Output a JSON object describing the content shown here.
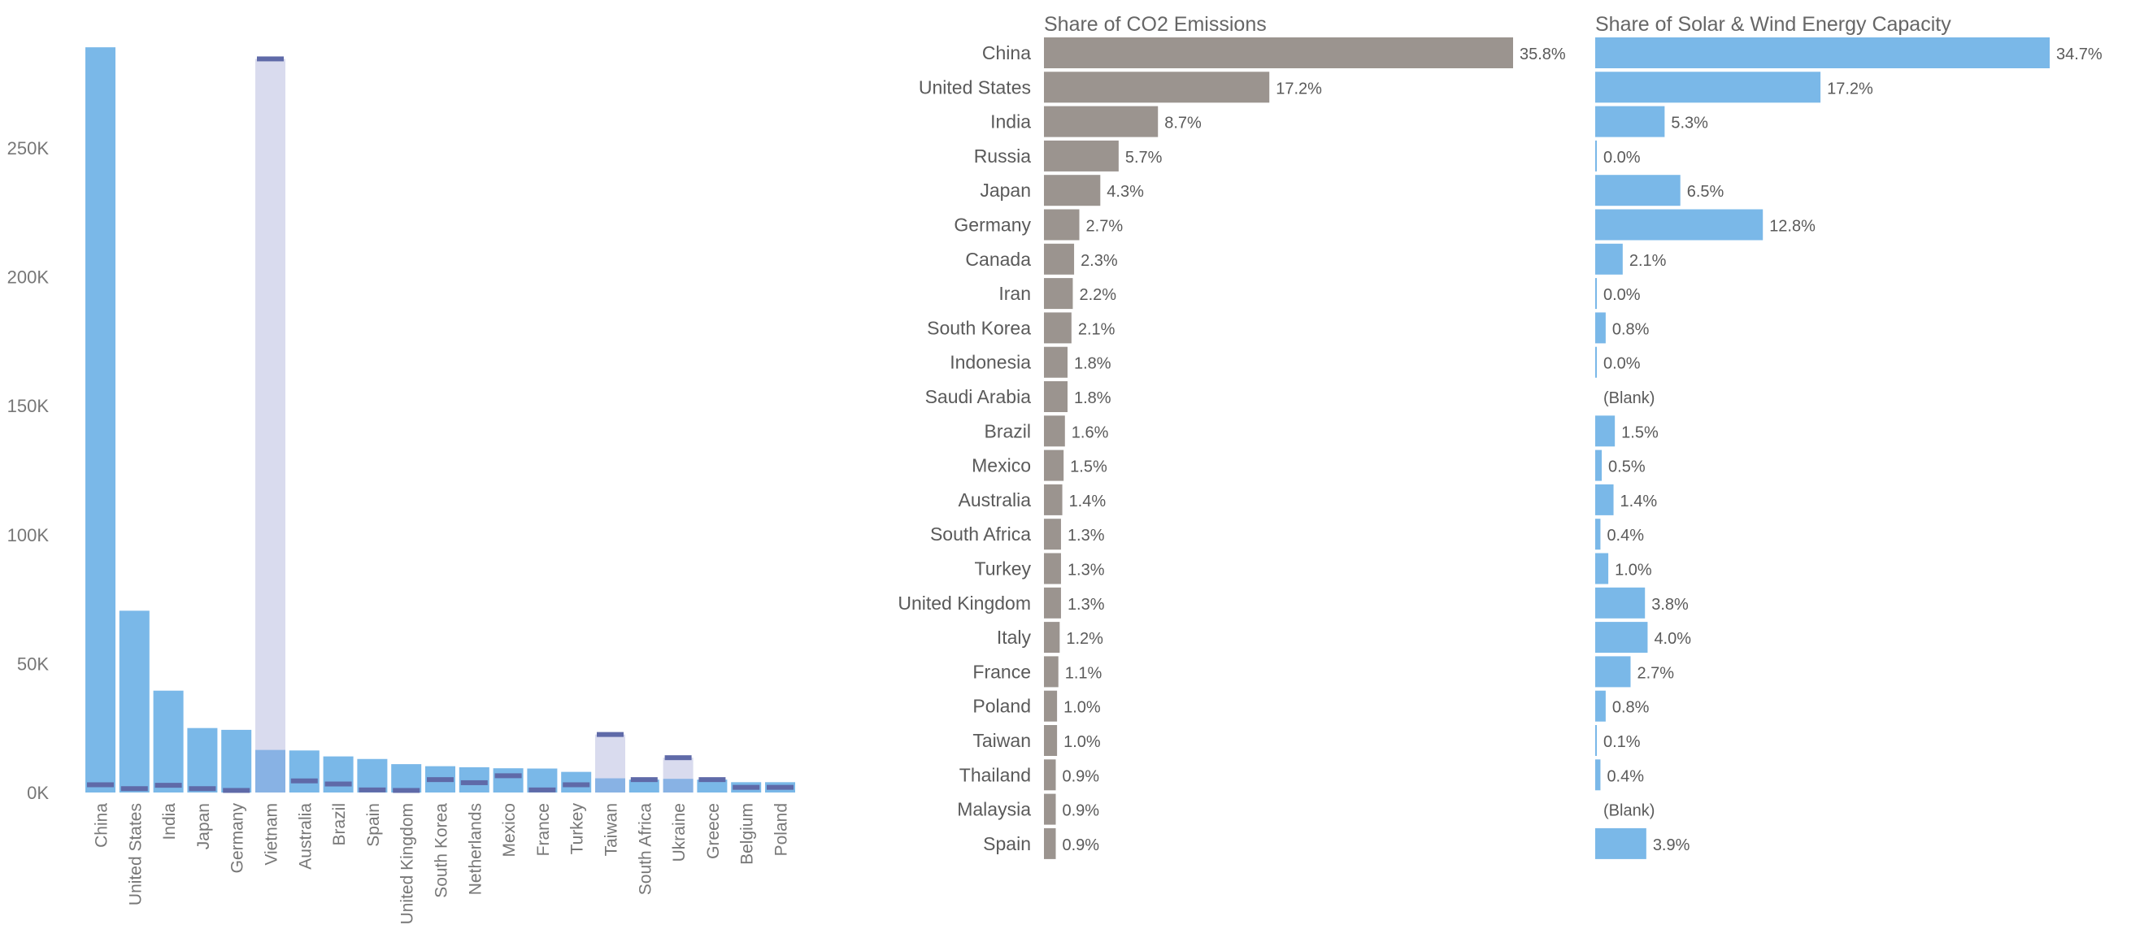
{
  "chart_data": [
    {
      "type": "bar",
      "title": "",
      "xlabel": "",
      "ylabel": "",
      "ylim": [
        0,
        290000
      ],
      "yticks": [
        0,
        50000,
        100000,
        150000,
        200000,
        250000
      ],
      "ytick_labels": [
        "0K",
        "50K",
        "100K",
        "150K",
        "200K",
        "250K"
      ],
      "categories": [
        "China",
        "United States",
        "India",
        "Japan",
        "Germany",
        "Vietnam",
        "Australia",
        "Brazil",
        "Spain",
        "United Kingdom",
        "South Korea",
        "Netherlands",
        "Mexico",
        "France",
        "Turkey",
        "Taiwan",
        "South Africa",
        "Ukraine",
        "Greece",
        "Belgium",
        "Poland"
      ],
      "highlighted": [
        "Vietnam",
        "Taiwan",
        "Ukraine"
      ],
      "series": [
        {
          "values": [
            289000,
            70500,
            39500,
            25000,
            24300,
            16500,
            16300,
            14000,
            13000,
            11000,
            10200,
            9800,
            9400,
            9300,
            8000,
            5500,
            5000,
            5300,
            5000,
            4000,
            4000
          ]
        },
        {
          "values": [
            null,
            null,
            null,
            null,
            null,
            284500,
            null,
            null,
            null,
            null,
            null,
            null,
            null,
            null,
            null,
            22500,
            null,
            13500,
            null,
            null,
            null
          ]
        },
        {
          "values": [
            3000,
            1500,
            2800,
            1500,
            800,
            284500,
            4500,
            3300,
            1000,
            800,
            5000,
            3800,
            6500,
            1000,
            3000,
            22500,
            5000,
            13500,
            5000,
            2000,
            2000
          ]
        }
      ],
      "grid": false,
      "legend": "none"
    },
    {
      "type": "bar",
      "orientation": "horizontal",
      "title": "Share of CO2 Emissions",
      "categories": [
        "China",
        "United States",
        "India",
        "Russia",
        "Japan",
        "Germany",
        "Canada",
        "Iran",
        "South Korea",
        "Indonesia",
        "Saudi Arabia",
        "Brazil",
        "Mexico",
        "Australia",
        "South Africa",
        "Turkey",
        "United Kingdom",
        "Italy",
        "France",
        "Poland",
        "Taiwan",
        "Thailand",
        "Malaysia",
        "Spain"
      ],
      "values": [
        35.8,
        17.2,
        8.7,
        5.7,
        4.3,
        2.7,
        2.3,
        2.2,
        2.1,
        1.8,
        1.8,
        1.6,
        1.5,
        1.4,
        1.3,
        1.3,
        1.3,
        1.2,
        1.1,
        1.0,
        1.0,
        0.9,
        0.9,
        0.9
      ],
      "labels": [
        "35.8%",
        "17.2%",
        "8.7%",
        "5.7%",
        "4.3%",
        "2.7%",
        "2.3%",
        "2.2%",
        "2.1%",
        "1.8%",
        "1.8%",
        "1.6%",
        "1.5%",
        "1.4%",
        "1.3%",
        "1.3%",
        "1.3%",
        "1.2%",
        "1.1%",
        "1.0%",
        "1.0%",
        "0.9%",
        "0.9%",
        "0.9%"
      ],
      "unit": "%",
      "grid": false,
      "legend": "none"
    },
    {
      "type": "bar",
      "orientation": "horizontal",
      "title": "Share of Solar & Wind Energy Capacity",
      "categories": [
        "China",
        "United States",
        "India",
        "Russia",
        "Japan",
        "Germany",
        "Canada",
        "Iran",
        "South Korea",
        "Indonesia",
        "Saudi Arabia",
        "Brazil",
        "Mexico",
        "Australia",
        "South Africa",
        "Turkey",
        "United Kingdom",
        "Italy",
        "France",
        "Poland",
        "Taiwan",
        "Thailand",
        "Malaysia",
        "Spain"
      ],
      "values": [
        34.7,
        17.2,
        5.3,
        0.0,
        6.5,
        12.8,
        2.1,
        0.0,
        0.8,
        0.0,
        null,
        1.5,
        0.5,
        1.4,
        0.4,
        1.0,
        3.8,
        4.0,
        2.7,
        0.8,
        0.1,
        0.4,
        null,
        3.9
      ],
      "labels": [
        "34.7%",
        "17.2%",
        "5.3%",
        "0.0%",
        "6.5%",
        "12.8%",
        "2.1%",
        "0.0%",
        "0.8%",
        "0.0%",
        "(Blank)",
        "1.5%",
        "0.5%",
        "1.4%",
        "0.4%",
        "1.0%",
        "3.8%",
        "4.0%",
        "2.7%",
        "0.8%",
        "0.1%",
        "0.4%",
        "(Blank)",
        "3.9%"
      ],
      "unit": "%",
      "grid": false,
      "legend": "none"
    }
  ],
  "colors": {
    "col_bar": "#7ab8e8",
    "col_bar_highlight": "#d9dbee",
    "col_bar_overlay": "#88b2e4",
    "marker": "#5f6aa8",
    "co2_bar": "#9b948f",
    "solar_bar": "#7ab8e8",
    "label_text": "#5a5a5a",
    "axis_text": "#777777",
    "title_text": "#666666"
  }
}
